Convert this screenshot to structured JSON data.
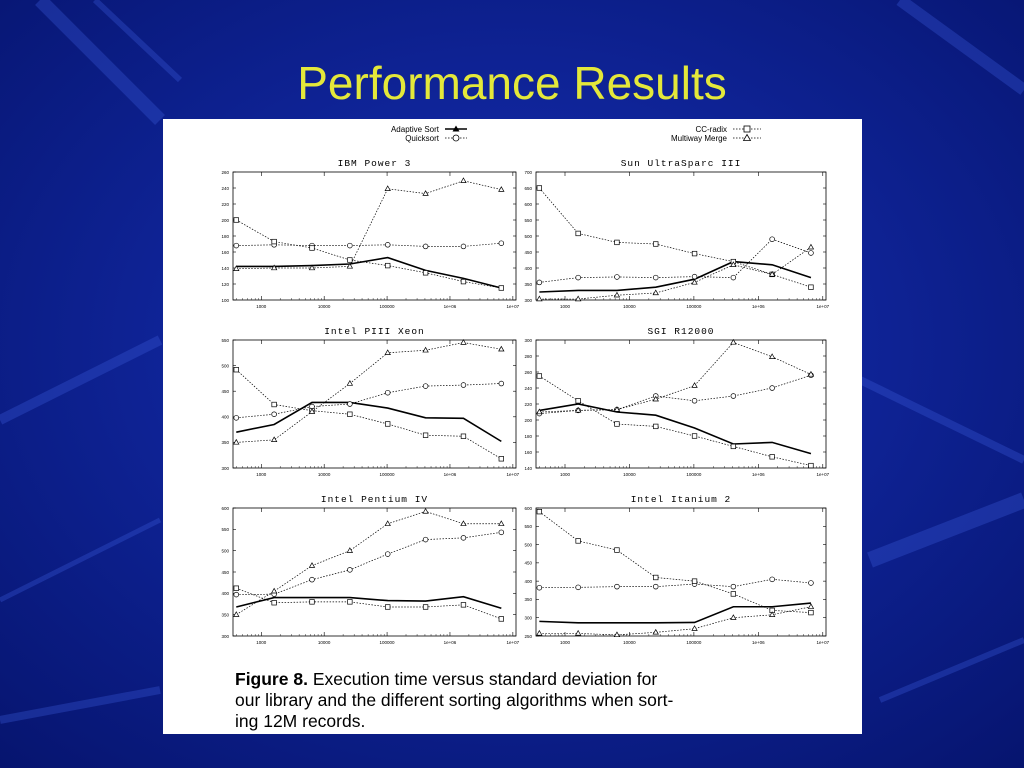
{
  "slide": {
    "title": "Performance Results"
  },
  "legend": [
    {
      "label": "Adaptive Sort",
      "style": "solid",
      "marker": "triangle"
    },
    {
      "label": "Quicksort",
      "style": "dotted",
      "marker": "circle"
    },
    {
      "label": "CC-radix",
      "style": "dotted",
      "marker": "square"
    },
    {
      "label": "Multiway Merge",
      "style": "dotted",
      "marker": "triangle"
    }
  ],
  "caption": {
    "label": "Figure 8.",
    "lines": [
      "Execution time versus standard deviation for",
      "our library and the different sorting algorithms when sort-",
      "ing 12M records."
    ]
  },
  "colors": {
    "background": "#0a1a8c",
    "title": "#e4e83a",
    "panel": "#ffffff",
    "ink": "#000000"
  },
  "chart_data": [
    {
      "type": "line",
      "title": "IBM Power 3",
      "x_ticks": [
        "1000",
        "10000",
        "100000",
        "1e+06",
        "1e+07"
      ],
      "x_log_range": [
        2.55,
        7.05
      ],
      "x": [
        400,
        1600,
        6400,
        25600,
        102400,
        409600,
        1638400,
        6553600
      ],
      "ylim": [
        100,
        260
      ],
      "y_ticks": [
        "100",
        "120",
        "140",
        "160",
        "180",
        "200",
        "220",
        "240",
        "260"
      ],
      "series": [
        {
          "name": "Adaptive Sort",
          "values": [
            142,
            142,
            143,
            145,
            153,
            137,
            127,
            115
          ]
        },
        {
          "name": "Quicksort",
          "values": [
            168,
            169,
            168,
            168,
            169,
            167,
            167,
            171
          ]
        },
        {
          "name": "CC-radix",
          "values": [
            200,
            173,
            165,
            150,
            143,
            134,
            123,
            115
          ]
        },
        {
          "name": "Multiway Merge",
          "values": [
            139,
            140,
            140,
            142,
            239,
            233,
            249,
            238
          ]
        }
      ]
    },
    {
      "type": "line",
      "title": "Sun UltraSparc III",
      "x_ticks": [
        "1000",
        "10000",
        "100000",
        "1e+06",
        "1e+07"
      ],
      "x_log_range": [
        2.55,
        7.05
      ],
      "x": [
        400,
        1600,
        6400,
        25600,
        102400,
        409600,
        1638400,
        6553600
      ],
      "ylim": [
        300,
        700
      ],
      "y_ticks": [
        "300",
        "350",
        "400",
        "450",
        "500",
        "550",
        "600",
        "650",
        "700"
      ],
      "series": [
        {
          "name": "Adaptive Sort",
          "values": [
            325,
            330,
            330,
            340,
            365,
            420,
            410,
            370
          ]
        },
        {
          "name": "Quicksort",
          "values": [
            355,
            370,
            372,
            370,
            373,
            370,
            490,
            447
          ]
        },
        {
          "name": "CC-radix",
          "values": [
            650,
            508,
            480,
            475,
            445,
            420,
            380,
            340
          ]
        },
        {
          "name": "Multiway Merge",
          "values": [
            303,
            303,
            315,
            322,
            355,
            410,
            380,
            465
          ]
        }
      ]
    },
    {
      "type": "line",
      "title": "Intel PIII Xeon",
      "x_ticks": [
        "1000",
        "10000",
        "100000",
        "1e+06",
        "1e+07"
      ],
      "x_log_range": [
        2.55,
        7.05
      ],
      "x": [
        400,
        1600,
        6400,
        25600,
        102400,
        409600,
        1638400,
        6553600
      ],
      "ylim": [
        300,
        550
      ],
      "y_ticks": [
        "300",
        "350",
        "400",
        "450",
        "500",
        "550"
      ],
      "series": [
        {
          "name": "Adaptive Sort",
          "values": [
            370,
            385,
            428,
            428,
            417,
            398,
            397,
            352
          ]
        },
        {
          "name": "Quicksort",
          "values": [
            398,
            405,
            420,
            425,
            447,
            460,
            462,
            465
          ]
        },
        {
          "name": "CC-radix",
          "values": [
            492,
            424,
            412,
            405,
            386,
            364,
            362,
            318
          ]
        },
        {
          "name": "Multiway Merge",
          "values": [
            350,
            355,
            410,
            465,
            525,
            530,
            545,
            532
          ]
        }
      ]
    },
    {
      "type": "line",
      "title": "SGI R12000",
      "x_ticks": [
        "1000",
        "10000",
        "100000",
        "1e+06",
        "1e+07"
      ],
      "x_log_range": [
        2.55,
        7.05
      ],
      "x": [
        400,
        1600,
        6400,
        25600,
        102400,
        409600,
        1638400,
        6553600
      ],
      "ylim": [
        140,
        300
      ],
      "y_ticks": [
        "140",
        "160",
        "180",
        "200",
        "220",
        "240",
        "260",
        "280",
        "300"
      ],
      "series": [
        {
          "name": "Adaptive Sort",
          "values": [
            212,
            220,
            210,
            206,
            190,
            170,
            172,
            158
          ]
        },
        {
          "name": "Quicksort",
          "values": [
            208,
            212,
            213,
            230,
            224,
            230,
            240,
            256
          ]
        },
        {
          "name": "CC-radix",
          "values": [
            255,
            224,
            195,
            192,
            180,
            167,
            154,
            143
          ]
        },
        {
          "name": "Multiway Merge",
          "values": [
            210,
            212,
            213,
            226,
            243,
            297,
            279,
            257
          ]
        }
      ]
    },
    {
      "type": "line",
      "title": "Intel Pentium IV",
      "x_ticks": [
        "1000",
        "10000",
        "100000",
        "1e+06",
        "1e+07"
      ],
      "x_log_range": [
        2.55,
        7.05
      ],
      "x": [
        400,
        1600,
        6400,
        25600,
        102400,
        409600,
        1638400,
        6553600
      ],
      "ylim": [
        300,
        600
      ],
      "y_ticks": [
        "300",
        "350",
        "400",
        "450",
        "500",
        "550",
        "600"
      ],
      "series": [
        {
          "name": "Adaptive Sort",
          "values": [
            368,
            390,
            390,
            390,
            383,
            382,
            392,
            365
          ]
        },
        {
          "name": "Quicksort",
          "values": [
            397,
            398,
            432,
            455,
            492,
            526,
            530,
            543
          ]
        },
        {
          "name": "CC-radix",
          "values": [
            412,
            378,
            380,
            380,
            368,
            368,
            373,
            340
          ]
        },
        {
          "name": "Multiway Merge",
          "values": [
            350,
            405,
            465,
            500,
            563,
            592,
            563,
            563
          ]
        }
      ]
    },
    {
      "type": "line",
      "title": "Intel Itanium 2",
      "x_ticks": [
        "1000",
        "10000",
        "100000",
        "1e+06",
        "1e+07"
      ],
      "x_log_range": [
        2.55,
        7.05
      ],
      "x": [
        400,
        1600,
        6400,
        25600,
        102400,
        409600,
        1638400,
        6553600
      ],
      "ylim": [
        250,
        600
      ],
      "y_ticks": [
        "250",
        "300",
        "350",
        "400",
        "450",
        "500",
        "550",
        "600"
      ],
      "series": [
        {
          "name": "Adaptive Sort",
          "values": [
            290,
            286,
            286,
            286,
            287,
            330,
            330,
            340
          ]
        },
        {
          "name": "Quicksort",
          "values": [
            382,
            383,
            385,
            385,
            392,
            385,
            405,
            395
          ]
        },
        {
          "name": "CC-radix",
          "values": [
            590,
            510,
            485,
            410,
            400,
            365,
            320,
            314
          ]
        },
        {
          "name": "Multiway Merge",
          "values": [
            257,
            257,
            253,
            260,
            270,
            300,
            308,
            330
          ]
        }
      ]
    }
  ]
}
